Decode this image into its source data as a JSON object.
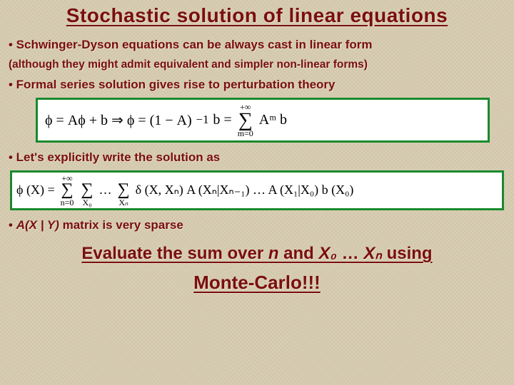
{
  "title": "Stochastic solution of linear equations",
  "bullets": {
    "b1": "• Schwinger-Dyson equations can be always cast in linear form",
    "b1sub": "(although they might admit equivalent and simpler non-linear forms)",
    "b2": "• Formal series solution gives rise to perturbation theory",
    "b3": "• Let's explicitly write the solution as",
    "b4_pre": "• ",
    "b4_matrix": "A(X | Y)",
    "b4_post": "  matrix is very sparse"
  },
  "eq1": {
    "lhs": "ϕ = Aϕ + b  ⇒  ϕ = (1 − A)",
    "inv": "−1",
    "mid": " b = ",
    "sum_top": "+∞",
    "sum_bot": "m=0",
    "rhs": " Aᵐ b"
  },
  "eq2": {
    "lhs": "ϕ (X) = ",
    "sum1_top": "+∞",
    "sum1_bot": "n=0",
    "sum2_bot": "X₀",
    "dots": " … ",
    "sum3_bot": "Xₙ",
    "body": " δ (X, Xₙ) A (Xₙ|Xₙ₋₁) … A (X₁|X₀) b (X₀)"
  },
  "cta": {
    "line1_a": "Evaluate the sum over ",
    "line1_n": "n",
    "line1_b": " and ",
    "line1_x0": "X₀",
    "line1_c": " … ",
    "line1_xn": "Xₙ",
    "line1_d": " using",
    "line2": "Monte-Carlo!!!"
  },
  "colors": {
    "text": "#7a0e0e",
    "background": "#d9cfb5",
    "box_border": "#1a8a2d",
    "box_bg": "#ffffff"
  }
}
